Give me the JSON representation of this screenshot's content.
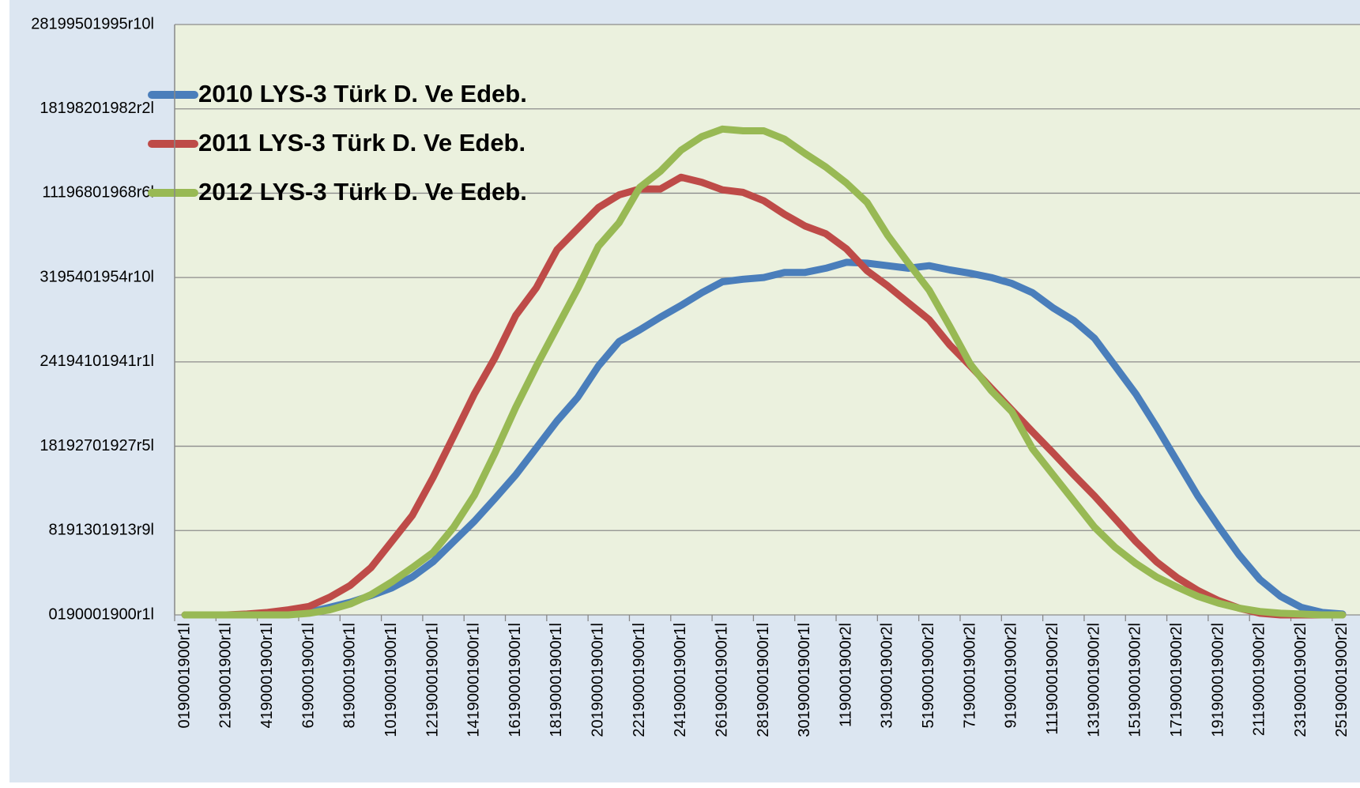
{
  "chart_data": {
    "type": "line",
    "categories": [
      "0190001900r1l",
      null,
      "2190001900r1l",
      null,
      "4190001900r1l",
      null,
      "6190001900r1l",
      null,
      "8190001900r1l",
      null,
      "10190001900r1l",
      null,
      "12190001900r1l",
      null,
      "14190001900r1l",
      null,
      "16190001900r1l",
      null,
      "18190001900r1l",
      null,
      "20190001900r1l",
      null,
      "22190001900r1l",
      null,
      "24190001900r1l",
      null,
      "26190001900r1l",
      null,
      "28190001900r1l",
      null,
      "30190001900r1l",
      null,
      "1190001900r2l",
      null,
      "3190001900r2l",
      null,
      "5190001900r2l",
      null,
      "7190001900r2l",
      null,
      "9190001900r2l",
      null,
      "11190001900r2l",
      null,
      "13190001900r2l",
      null,
      "15190001900r2l",
      null,
      "17190001900r2l",
      null,
      "19190001900r2l",
      null,
      "21190001900r2l",
      null,
      "23190001900r2l",
      null,
      "25190001900r2l"
    ],
    "series": [
      {
        "name": "2010 LYS-3 Türk D. Ve Edeb.",
        "color": "#4a7ebb",
        "values": [
          0,
          0,
          0,
          0,
          0,
          0.01,
          0.03,
          0.09,
          0.15,
          0.23,
          0.32,
          0.45,
          0.63,
          0.87,
          1.11,
          1.38,
          1.66,
          1.98,
          2.3,
          2.58,
          2.95,
          3.24,
          3.38,
          3.53,
          3.67,
          3.82,
          3.95,
          3.98,
          4.0,
          4.06,
          4.06,
          4.11,
          4.18,
          4.17,
          4.14,
          4.11,
          4.14,
          4.09,
          4.05,
          4.0,
          3.93,
          3.82,
          3.64,
          3.49,
          3.28,
          2.95,
          2.62,
          2.23,
          1.82,
          1.41,
          1.05,
          0.71,
          0.42,
          0.22,
          0.09,
          0.03,
          0.01
        ]
      },
      {
        "name": "2011 LYS-3 Türk D. Ve Edeb.",
        "color": "#be4b48",
        "values": [
          0,
          0,
          0,
          0.01,
          0.03,
          0.06,
          0.1,
          0.21,
          0.35,
          0.56,
          0.87,
          1.18,
          1.63,
          2.12,
          2.62,
          3.05,
          3.55,
          3.88,
          4.33,
          4.58,
          4.83,
          4.98,
          5.05,
          5.05,
          5.19,
          5.13,
          5.04,
          5.01,
          4.91,
          4.75,
          4.61,
          4.52,
          4.34,
          4.08,
          3.9,
          3.7,
          3.5,
          3.2,
          2.95,
          2.69,
          2.43,
          2.17,
          1.92,
          1.66,
          1.41,
          1.14,
          0.87,
          0.63,
          0.44,
          0.29,
          0.17,
          0.08,
          0.02,
          0,
          0,
          0,
          0
        ]
      },
      {
        "name": "2012 LYS-3 Türk D. Ve Edeb.",
        "color": "#98b954",
        "values": [
          0,
          0,
          0,
          0,
          0,
          0,
          0.02,
          0.06,
          0.13,
          0.24,
          0.39,
          0.56,
          0.74,
          1.04,
          1.42,
          1.92,
          2.46,
          2.95,
          3.41,
          3.87,
          4.37,
          4.65,
          5.07,
          5.26,
          5.51,
          5.67,
          5.76,
          5.74,
          5.74,
          5.64,
          5.47,
          5.31,
          5.12,
          4.89,
          4.5,
          4.17,
          3.85,
          3.42,
          2.97,
          2.66,
          2.41,
          1.97,
          1.66,
          1.35,
          1.04,
          0.8,
          0.61,
          0.45,
          0.33,
          0.22,
          0.14,
          0.08,
          0.04,
          0.02,
          0.01,
          0,
          0
        ]
      }
    ],
    "ylim": [
      0,
      7
    ],
    "yticks": [
      {
        "value": 0,
        "label": "0190001900r1l"
      },
      {
        "value": 1,
        "label": "8191301913r9l"
      },
      {
        "value": 2,
        "label": "18192701927r5l"
      },
      {
        "value": 3,
        "label": "24194101941r1l"
      },
      {
        "value": 4,
        "label": "3195401954r10l"
      },
      {
        "value": 5,
        "label": "11196801968r6l"
      },
      {
        "value": 6,
        "label": "18198201982r2l"
      },
      {
        "value": 7,
        "label": "28199501995r10l"
      }
    ],
    "grid": true,
    "legend": "top-left"
  }
}
